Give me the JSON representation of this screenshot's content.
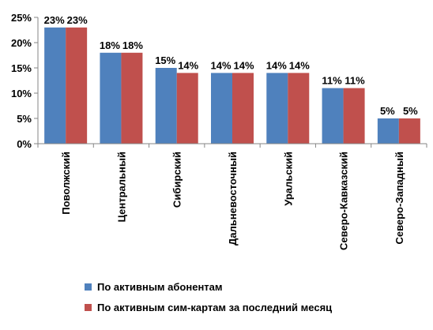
{
  "chart_data": {
    "type": "bar",
    "categories": [
      "Поволжский",
      "Центральный",
      "Сибирский",
      "Дальневосточный",
      "Уральский",
      "Северо-Кавказский",
      "Северо-Западный"
    ],
    "series": [
      {
        "name": "По активным абонентам",
        "values": [
          23,
          18,
          15,
          14,
          14,
          11,
          5
        ],
        "labels": [
          "23%",
          "18%",
          "15%",
          "14%",
          "14%",
          "11%",
          "5%"
        ],
        "color": "#4F81BD"
      },
      {
        "name": "По активным сим-картам за последний месяц",
        "values": [
          23,
          18,
          14,
          14,
          14,
          11,
          5
        ],
        "labels": [
          "23%",
          "18%",
          "14%",
          "14%",
          "14%",
          "11%",
          "5%"
        ],
        "color": "#C0504D"
      }
    ],
    "ylim": [
      0,
      25
    ],
    "yticks": [
      0,
      5,
      10,
      15,
      20,
      25
    ],
    "ytick_labels": [
      "0%",
      "5%",
      "10%",
      "15%",
      "20%",
      "25%"
    ],
    "grid": false,
    "legend_position": "bottom",
    "title": "",
    "xlabel": "",
    "ylabel": ""
  }
}
